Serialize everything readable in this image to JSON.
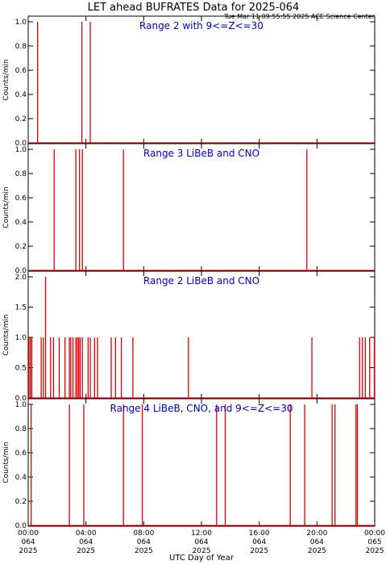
{
  "header": {
    "title": "LET ahead BUFRATES Data for 2025-064",
    "timestamp": "Tue Mar 11 09:55:55 2025 ACE Science Center"
  },
  "xaxis": {
    "label": "UTC Day of Year",
    "tick_lines": [
      [
        "00:00",
        "064",
        "2025"
      ],
      [
        "04:00",
        "064",
        "2025"
      ],
      [
        "08:00",
        "064",
        "2025"
      ],
      [
        "12:00",
        "064",
        "2025"
      ],
      [
        "16:00",
        "064",
        "2025"
      ],
      [
        "20:00",
        "064",
        "2025"
      ],
      [
        "00:00",
        "065",
        "2025"
      ]
    ]
  },
  "colors": {
    "series": "#dd0000",
    "title_text": "#0000cc"
  },
  "chart_data": [
    {
      "type": "bar",
      "title": "Range 2 with 9<=Z<=30",
      "ylabel": "Counts/min",
      "xlim": [
        0,
        24
      ],
      "ylim": [
        0,
        1.0
      ],
      "yticks": [
        "0.0",
        "0.2",
        "0.4",
        "0.6",
        "0.8",
        "1.0"
      ],
      "x_hours": [
        0.65,
        3.72,
        4.3
      ],
      "values": [
        1,
        1,
        1
      ]
    },
    {
      "type": "bar",
      "title": "Range 3 LiBeB and CNO",
      "ylabel": "Counts/min",
      "xlim": [
        0,
        24
      ],
      "ylim": [
        0,
        1.0
      ],
      "yticks": [
        "0.0",
        "0.2",
        "0.4",
        "0.6",
        "0.8",
        "1.0"
      ],
      "x_hours": [
        1.8,
        3.3,
        3.55,
        3.75,
        6.6,
        19.3
      ],
      "values": [
        1,
        1,
        1,
        1,
        1,
        1
      ]
    },
    {
      "type": "bar",
      "title": "Range 2 LiBeB and CNO",
      "ylabel": "Counts/min",
      "xlim": [
        0,
        24
      ],
      "ylim": [
        0,
        2.0
      ],
      "yticks": [
        "0.0",
        "0.5",
        "1.0",
        "1.5",
        "2.0"
      ],
      "x_hours": [
        0.05,
        0.15,
        0.25,
        0.9,
        1.05,
        1.2,
        1.55,
        1.75,
        2.15,
        2.55,
        2.85,
        2.95,
        3.1,
        3.3,
        3.4,
        3.5,
        3.6,
        3.75,
        4.15,
        4.3,
        4.6,
        4.8,
        5.75,
        6.05,
        6.45,
        7.25,
        11.1,
        19.65,
        22.95,
        23.15,
        23.35,
        23.65,
        24.0
      ],
      "values": [
        1,
        1,
        1,
        1,
        1,
        2,
        1,
        1,
        1,
        1,
        1,
        1,
        1,
        1,
        1,
        1,
        1,
        1,
        1,
        1,
        1,
        1,
        1,
        1,
        1,
        1,
        1,
        1,
        1,
        1,
        1,
        1,
        1
      ]
    },
    {
      "type": "bar",
      "title": "Range 4 LiBeB, CNO, and 9<=Z<=30",
      "ylabel": "Counts/min",
      "xlim": [
        0,
        24
      ],
      "ylim": [
        0,
        1.0
      ],
      "yticks": [
        "0.0",
        "0.2",
        "0.4",
        "0.6",
        "0.8",
        "1.0"
      ],
      "x_hours": [
        0.2,
        2.85,
        3.85,
        6.6,
        7.9,
        13.05,
        13.65,
        18.15,
        19.15,
        21.05,
        21.25,
        22.7,
        22.8
      ],
      "values": [
        1,
        1,
        1,
        1,
        1,
        1,
        1,
        1,
        1,
        1,
        1,
        1,
        1
      ]
    }
  ]
}
